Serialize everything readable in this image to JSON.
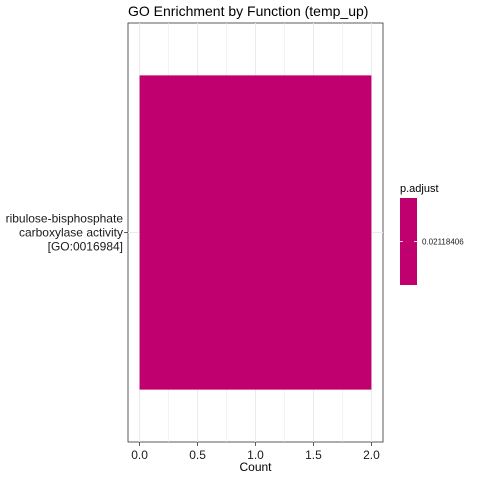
{
  "chart_data": {
    "type": "bar",
    "orientation": "horizontal",
    "title": "GO Enrichment by Function (temp_up)",
    "xlabel": "Count",
    "ylabel": "",
    "xlim": [
      0,
      2
    ],
    "x_ticks": [
      "0.0",
      "0.5",
      "1.0",
      "1.5",
      "2.0"
    ],
    "x_tick_values": [
      0,
      0.5,
      1.0,
      1.5,
      2.0
    ],
    "categories": [
      [
        "ribulose-bisphosphate",
        "carboxylase activity",
        "[GO:0016984]"
      ]
    ],
    "values": [
      2
    ],
    "p_adjust": [
      0.02118406
    ],
    "grid": true,
    "bar_color": "#C0006E",
    "legend": {
      "title": "p.adjust",
      "placement": "right",
      "labels": [
        "0.02118406"
      ]
    }
  }
}
